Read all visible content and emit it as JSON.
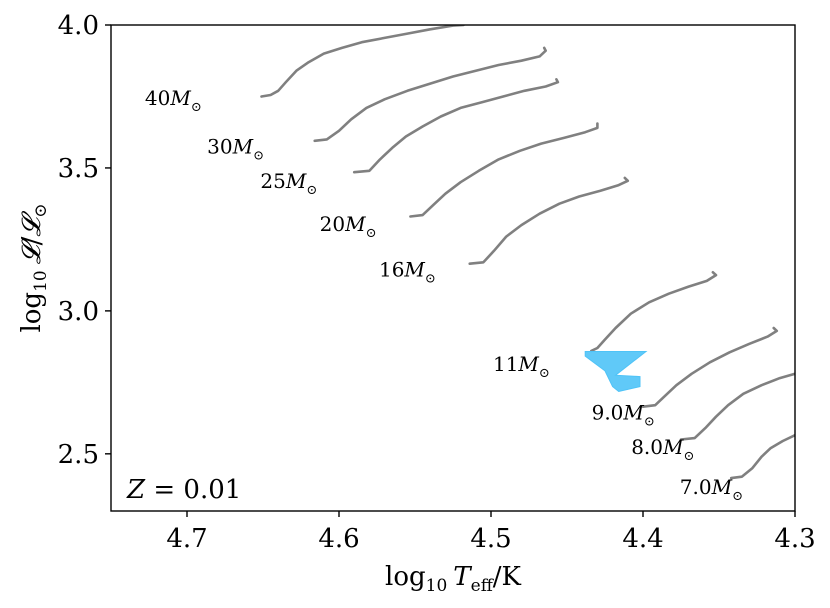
{
  "chart_data": {
    "type": "line",
    "title": "",
    "xlabel_parts": {
      "log": "log",
      "sub": "10",
      "var": "T",
      "varsub": "eff",
      "unit": "/K"
    },
    "ylabel_parts": {
      "log": "log",
      "sub": "10",
      "var": "𝓛",
      "slash": "/",
      "var2": "𝓛",
      "sun": "⊙"
    },
    "xlim": [
      4.75,
      4.3
    ],
    "ylim": [
      2.3,
      4.0
    ],
    "x_inverted": true,
    "xticks": [
      4.7,
      4.6,
      4.5,
      4.4,
      4.3
    ],
    "xtick_labels": [
      "4.7",
      "4.6",
      "4.5",
      "4.4",
      "4.3"
    ],
    "yticks": [
      2.5,
      3.0,
      3.5,
      4.0
    ],
    "ytick_labels": [
      "2.5",
      "3.0",
      "3.5",
      "4.0"
    ],
    "grid": false,
    "annotation": {
      "var": "Z",
      "eq": " = ",
      "value": "0.01"
    },
    "track_color": "#808080",
    "region_color": "#4fc3f7",
    "series": [
      {
        "label_num": "40",
        "label_x": 4.709,
        "label_y": 3.72,
        "x": [
          4.651,
          4.645,
          4.64,
          4.635,
          4.628,
          4.62,
          4.61,
          4.598,
          4.585,
          4.57,
          4.555,
          4.54,
          4.525,
          4.518
        ],
        "y": [
          3.75,
          3.755,
          3.77,
          3.8,
          3.84,
          3.87,
          3.9,
          3.92,
          3.94,
          3.955,
          3.97,
          3.985,
          3.998,
          4.0
        ]
      },
      {
        "label_num": "30",
        "label_x": 4.668,
        "label_y": 3.55,
        "x": [
          4.616,
          4.608,
          4.6,
          4.592,
          4.582,
          4.57,
          4.555,
          4.54,
          4.525,
          4.51,
          4.495,
          4.48,
          4.468,
          4.464,
          4.465
        ],
        "y": [
          3.595,
          3.6,
          3.63,
          3.67,
          3.71,
          3.74,
          3.77,
          3.795,
          3.82,
          3.84,
          3.86,
          3.875,
          3.89,
          3.91,
          3.92
        ]
      },
      {
        "label_num": "25",
        "label_x": 4.633,
        "label_y": 3.43,
        "x": [
          4.59,
          4.58,
          4.573,
          4.565,
          4.556,
          4.545,
          4.533,
          4.52,
          4.506,
          4.492,
          4.478,
          4.464,
          4.456,
          4.457
        ],
        "y": [
          3.485,
          3.49,
          3.53,
          3.57,
          3.61,
          3.645,
          3.68,
          3.71,
          3.73,
          3.75,
          3.77,
          3.785,
          3.8,
          3.81
        ]
      },
      {
        "label_num": "20",
        "label_x": 4.594,
        "label_y": 3.28,
        "x": [
          4.553,
          4.545,
          4.538,
          4.53,
          4.52,
          4.508,
          4.495,
          4.481,
          4.467,
          4.452,
          4.438,
          4.43,
          4.43
        ],
        "y": [
          3.33,
          3.335,
          3.37,
          3.41,
          3.45,
          3.49,
          3.53,
          3.56,
          3.585,
          3.605,
          3.625,
          3.64,
          3.655
        ]
      },
      {
        "label_num": "16",
        "label_x": 4.555,
        "label_y": 3.12,
        "x": [
          4.514,
          4.505,
          4.498,
          4.49,
          4.48,
          4.468,
          4.455,
          4.442,
          4.428,
          4.416,
          4.41,
          4.412
        ],
        "y": [
          3.165,
          3.17,
          3.21,
          3.26,
          3.3,
          3.34,
          3.375,
          3.4,
          3.42,
          3.44,
          3.455,
          3.465
        ]
      },
      {
        "label_num": "11",
        "label_x": 4.48,
        "label_y": 2.79,
        "x": [
          4.434,
          4.43,
          4.425,
          4.418,
          4.408,
          4.396,
          4.383,
          4.37,
          4.358,
          4.352,
          4.354
        ],
        "y": [
          2.86,
          2.87,
          2.9,
          2.94,
          2.99,
          3.03,
          3.06,
          3.085,
          3.105,
          3.125,
          3.135
        ]
      },
      {
        "label_num": "9.0",
        "label_x": 4.413,
        "label_y": 2.62,
        "x": [
          4.4,
          4.392,
          4.386,
          4.378,
          4.368,
          4.356,
          4.343,
          4.33,
          4.318,
          4.312,
          4.314
        ],
        "y": [
          2.665,
          2.67,
          2.7,
          2.74,
          2.78,
          2.82,
          2.855,
          2.885,
          2.91,
          2.93,
          2.94
        ]
      },
      {
        "label_num": "8.0",
        "label_x": 4.387,
        "label_y": 2.5,
        "x": [
          4.375,
          4.366,
          4.359,
          4.352,
          4.344,
          4.334,
          4.322,
          4.31,
          4.3
        ],
        "y": [
          2.55,
          2.555,
          2.59,
          2.63,
          2.67,
          2.71,
          2.74,
          2.765,
          2.78
        ]
      },
      {
        "label_num": "7.0",
        "label_x": 4.355,
        "label_y": 2.36,
        "x": [
          4.342,
          4.335,
          4.328,
          4.322,
          4.316,
          4.308,
          4.3
        ],
        "y": [
          2.415,
          2.42,
          2.45,
          2.49,
          2.52,
          2.545,
          2.565
        ]
      }
    ],
    "region": {
      "polygon": [
        [
          4.438,
          2.858
        ],
        [
          4.398,
          2.858
        ],
        [
          4.418,
          2.775
        ],
        [
          4.402,
          2.77
        ],
        [
          4.402,
          2.735
        ],
        [
          4.416,
          2.718
        ],
        [
          4.42,
          2.735
        ],
        [
          4.425,
          2.79
        ],
        [
          4.438,
          2.842
        ]
      ]
    }
  }
}
